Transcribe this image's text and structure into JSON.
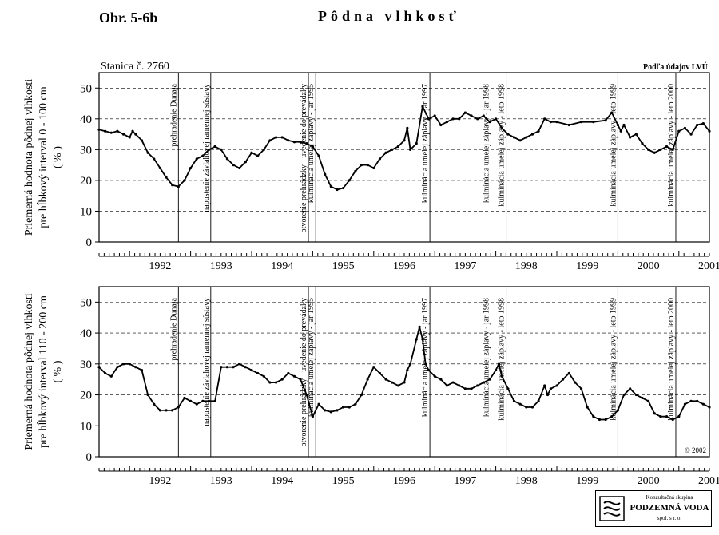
{
  "header": {
    "figure_label": "Obr. 5-6b",
    "title": "Pôdna vlhkosť"
  },
  "station": "Stanica č. 2760",
  "source_note": "Podľa údajov LVÚ",
  "copyright": "© 2002",
  "logo": {
    "line1": "Konzultačná skupina",
    "line2": "PODZEMNÁ VODA",
    "line3": "spol. s r. o."
  },
  "chart_data": [
    {
      "type": "line",
      "ylabel": "Priemerná hodnota pôdnej vlhkosti\npre hĺbkový interval 0 - 100 cm\n( % )",
      "ylim": [
        0,
        55
      ],
      "yticks": [
        0,
        10,
        20,
        30,
        40,
        50
      ],
      "xlim": [
        1991.5,
        2001.5
      ],
      "xticks": [
        "1992",
        "1993",
        "1994",
        "1995",
        "1996",
        "1997",
        "1998",
        "1999",
        "2000",
        "2001"
      ],
      "grid": "dashed horizontal",
      "events": [
        {
          "x": 1992.8,
          "label": "prehradenie Dunaja"
        },
        {
          "x": 1993.33,
          "label": "napustenie závlahovej ramennej sústavy"
        },
        {
          "x": 1994.93,
          "label": "otvorenie prehrádzky - uvedenie do prevádzky"
        },
        {
          "x": 1995.05,
          "label": "kulminácia umelej záplavy - jar 1995"
        },
        {
          "x": 1996.92,
          "label": "kulminácia umelej záplavy - jar 1997"
        },
        {
          "x": 1997.92,
          "label": "kulminácia umelej záplavy - jar 1998"
        },
        {
          "x": 1998.17,
          "label": "kulminácia umelej záplavy - leto 1998"
        },
        {
          "x": 2000.0,
          "label": "kulminácia umelej záplavy - leto 1999"
        },
        {
          "x": 2000.95,
          "label": "kulminácia umelej záplavy - leto 2000"
        }
      ],
      "series": [
        {
          "values": [
            [
              1991.5,
              36.5
            ],
            [
              1991.6,
              36
            ],
            [
              1991.7,
              35.5
            ],
            [
              1991.8,
              36
            ],
            [
              1991.9,
              35
            ],
            [
              1992.0,
              34
            ],
            [
              1992.05,
              36
            ],
            [
              1992.1,
              35
            ],
            [
              1992.2,
              33
            ],
            [
              1992.3,
              29
            ],
            [
              1992.4,
              27
            ],
            [
              1992.5,
              24
            ],
            [
              1992.6,
              21
            ],
            [
              1992.7,
              18.5
            ],
            [
              1992.8,
              18
            ],
            [
              1992.9,
              20
            ],
            [
              1993.0,
              24
            ],
            [
              1993.1,
              27
            ],
            [
              1993.2,
              28
            ],
            [
              1993.3,
              30
            ],
            [
              1993.4,
              31
            ],
            [
              1993.5,
              30
            ],
            [
              1993.6,
              27
            ],
            [
              1993.7,
              25
            ],
            [
              1993.8,
              24
            ],
            [
              1993.9,
              26
            ],
            [
              1994.0,
              29
            ],
            [
              1994.1,
              28
            ],
            [
              1994.2,
              30
            ],
            [
              1994.3,
              33
            ],
            [
              1994.4,
              34
            ],
            [
              1994.5,
              34
            ],
            [
              1994.6,
              33
            ],
            [
              1994.7,
              32.5
            ],
            [
              1994.8,
              32.5
            ],
            [
              1994.9,
              32
            ],
            [
              1995.0,
              31
            ],
            [
              1995.1,
              28
            ],
            [
              1995.2,
              22
            ],
            [
              1995.3,
              18
            ],
            [
              1995.4,
              17
            ],
            [
              1995.5,
              17.5
            ],
            [
              1995.6,
              20
            ],
            [
              1995.7,
              23
            ],
            [
              1995.8,
              25
            ],
            [
              1995.9,
              25
            ],
            [
              1996.0,
              24
            ],
            [
              1996.1,
              27
            ],
            [
              1996.2,
              29
            ],
            [
              1996.3,
              30
            ],
            [
              1996.4,
              31
            ],
            [
              1996.5,
              33
            ],
            [
              1996.55,
              37
            ],
            [
              1996.6,
              30
            ],
            [
              1996.7,
              32
            ],
            [
              1996.8,
              44
            ],
            [
              1996.9,
              40
            ],
            [
              1997.0,
              41
            ],
            [
              1997.1,
              38
            ],
            [
              1997.2,
              39
            ],
            [
              1997.3,
              40
            ],
            [
              1997.4,
              40
            ],
            [
              1997.5,
              42
            ],
            [
              1997.6,
              41
            ],
            [
              1997.7,
              40
            ],
            [
              1997.8,
              41
            ],
            [
              1997.9,
              39
            ],
            [
              1998.0,
              40
            ],
            [
              1998.1,
              37
            ],
            [
              1998.2,
              35
            ],
            [
              1998.3,
              34
            ],
            [
              1998.4,
              33
            ],
            [
              1998.5,
              34
            ],
            [
              1998.6,
              35
            ],
            [
              1998.7,
              36
            ],
            [
              1998.8,
              40
            ],
            [
              1998.9,
              39
            ],
            [
              1999.0,
              39
            ],
            [
              1999.2,
              38
            ],
            [
              1999.4,
              39
            ],
            [
              1999.6,
              39
            ],
            [
              1999.8,
              39.5
            ],
            [
              1999.9,
              42
            ],
            [
              2000.0,
              38
            ],
            [
              2000.05,
              36
            ],
            [
              2000.1,
              38
            ],
            [
              2000.2,
              34
            ],
            [
              2000.3,
              35
            ],
            [
              2000.4,
              32
            ],
            [
              2000.5,
              30
            ],
            [
              2000.6,
              29
            ],
            [
              2000.7,
              30
            ],
            [
              2000.8,
              31
            ],
            [
              2000.9,
              30
            ],
            [
              2001.0,
              36
            ],
            [
              2001.1,
              37
            ],
            [
              2001.2,
              35
            ],
            [
              2001.3,
              38
            ],
            [
              2001.4,
              38.5
            ],
            [
              2001.5,
              36
            ]
          ]
        }
      ]
    },
    {
      "type": "line",
      "ylabel": "Priemerná hodnota pôdnej vlhkosti\npre hĺbkový interval 110 - 200 cm\n( % )",
      "ylim": [
        0,
        55
      ],
      "yticks": [
        0,
        10,
        20,
        30,
        40,
        50
      ],
      "xlim": [
        1991.5,
        2001.5
      ],
      "xticks": [
        "1992",
        "1993",
        "1994",
        "1995",
        "1996",
        "1997",
        "1998",
        "1999",
        "2000",
        "2001"
      ],
      "grid": "dashed horizontal",
      "events": [
        {
          "x": 1992.8,
          "label": "prehradenie Dunaja"
        },
        {
          "x": 1993.33,
          "label": "napustenie závlahovej ramennej sústavy"
        },
        {
          "x": 1994.93,
          "label": "otvorenie prehrádzky - uvedenie do prevádzky"
        },
        {
          "x": 1995.05,
          "label": "kulminácia umelej záplavy - jar 1995"
        },
        {
          "x": 1996.92,
          "label": "kulminácia umelej záplavy - jar 1997"
        },
        {
          "x": 1997.92,
          "label": "kulminácia umelej záplavy - jar 1998"
        },
        {
          "x": 1998.17,
          "label": "kulminácia umelej záplavy - leto 1998"
        },
        {
          "x": 2000.0,
          "label": "kulminácia umelej záplavy - leto 1999"
        },
        {
          "x": 2000.95,
          "label": "kulminácia umelej záplavy - leto 2000"
        }
      ],
      "series": [
        {
          "values": [
            [
              1991.5,
              29
            ],
            [
              1991.6,
              27
            ],
            [
              1991.7,
              26
            ],
            [
              1991.8,
              29
            ],
            [
              1991.9,
              30
            ],
            [
              1992.0,
              30
            ],
            [
              1992.1,
              29
            ],
            [
              1992.2,
              28
            ],
            [
              1992.3,
              20
            ],
            [
              1992.4,
              17
            ],
            [
              1992.5,
              15
            ],
            [
              1992.6,
              15
            ],
            [
              1992.7,
              15
            ],
            [
              1992.8,
              16
            ],
            [
              1992.9,
              19
            ],
            [
              1993.0,
              18
            ],
            [
              1993.1,
              17
            ],
            [
              1993.2,
              18
            ],
            [
              1993.3,
              18
            ],
            [
              1993.4,
              18
            ],
            [
              1993.5,
              29
            ],
            [
              1993.6,
              29
            ],
            [
              1993.7,
              29
            ],
            [
              1993.8,
              30
            ],
            [
              1993.9,
              29
            ],
            [
              1994.0,
              28
            ],
            [
              1994.1,
              27
            ],
            [
              1994.2,
              26
            ],
            [
              1994.3,
              24
            ],
            [
              1994.4,
              24
            ],
            [
              1994.5,
              25
            ],
            [
              1994.6,
              27
            ],
            [
              1994.7,
              26
            ],
            [
              1994.8,
              25
            ],
            [
              1994.9,
              20
            ],
            [
              1995.0,
              13
            ],
            [
              1995.1,
              17
            ],
            [
              1995.2,
              15
            ],
            [
              1995.3,
              14.5
            ],
            [
              1995.4,
              15
            ],
            [
              1995.5,
              16
            ],
            [
              1995.6,
              16
            ],
            [
              1995.7,
              17
            ],
            [
              1995.8,
              20
            ],
            [
              1995.9,
              25
            ],
            [
              1996.0,
              29
            ],
            [
              1996.1,
              27
            ],
            [
              1996.2,
              25
            ],
            [
              1996.3,
              24
            ],
            [
              1996.4,
              23
            ],
            [
              1996.5,
              24
            ],
            [
              1996.55,
              28
            ],
            [
              1996.6,
              30
            ],
            [
              1996.7,
              38
            ],
            [
              1996.75,
              42
            ],
            [
              1996.8,
              38
            ],
            [
              1996.85,
              30
            ],
            [
              1996.9,
              28
            ],
            [
              1997.0,
              26
            ],
            [
              1997.1,
              25
            ],
            [
              1997.2,
              23
            ],
            [
              1997.3,
              24
            ],
            [
              1997.4,
              23
            ],
            [
              1997.5,
              22
            ],
            [
              1997.6,
              22
            ],
            [
              1997.7,
              23
            ],
            [
              1997.8,
              24
            ],
            [
              1997.9,
              25
            ],
            [
              1998.0,
              28
            ],
            [
              1998.05,
              30
            ],
            [
              1998.1,
              26
            ],
            [
              1998.2,
              22
            ],
            [
              1998.3,
              18
            ],
            [
              1998.4,
              17
            ],
            [
              1998.5,
              16
            ],
            [
              1998.6,
              16
            ],
            [
              1998.7,
              18
            ],
            [
              1998.8,
              23
            ],
            [
              1998.85,
              20
            ],
            [
              1998.9,
              22
            ],
            [
              1999.0,
              23
            ],
            [
              1999.1,
              25
            ],
            [
              1999.2,
              27
            ],
            [
              1999.3,
              24
            ],
            [
              1999.4,
              22
            ],
            [
              1999.5,
              16
            ],
            [
              1999.6,
              13
            ],
            [
              1999.7,
              12
            ],
            [
              1999.8,
              12
            ],
            [
              1999.9,
              13
            ],
            [
              2000.0,
              15
            ],
            [
              2000.1,
              20
            ],
            [
              2000.2,
              22
            ],
            [
              2000.3,
              20
            ],
            [
              2000.4,
              19
            ],
            [
              2000.5,
              18
            ],
            [
              2000.6,
              14
            ],
            [
              2000.7,
              13
            ],
            [
              2000.8,
              13
            ],
            [
              2000.9,
              12
            ],
            [
              2001.0,
              13
            ],
            [
              2001.1,
              17
            ],
            [
              2001.2,
              18
            ],
            [
              2001.3,
              18
            ],
            [
              2001.4,
              17
            ],
            [
              2001.5,
              16
            ]
          ]
        }
      ]
    }
  ]
}
